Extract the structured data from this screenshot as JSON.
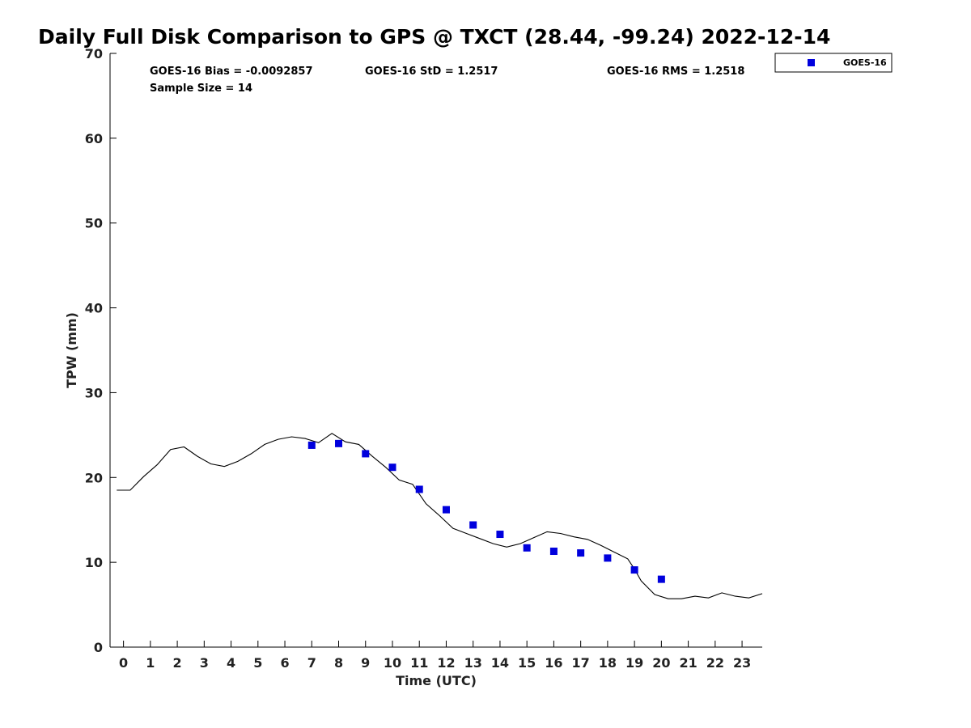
{
  "chart_data": {
    "type": "scatter",
    "title": "Daily Full Disk Comparison to GPS @ TXCT (28.44, -99.24) 2022-12-14",
    "xlabel": "Time (UTC)",
    "ylabel": "TPW (mm)",
    "xlim": [
      -0.5,
      23.75
    ],
    "ylim": [
      0,
      70
    ],
    "xticks": [
      0,
      1,
      2,
      3,
      4,
      5,
      6,
      7,
      8,
      9,
      10,
      11,
      12,
      13,
      14,
      15,
      16,
      17,
      18,
      19,
      20,
      21,
      22,
      23
    ],
    "yticks": [
      0,
      10,
      20,
      30,
      40,
      50,
      60,
      70
    ],
    "grid": false,
    "legend_position": "top-right (outside plot)",
    "stats": {
      "bias": "GOES-16 Bias = -0.0092857",
      "std": "GOES-16 StD = 1.2517",
      "rms": "GOES-16 RMS = 1.2518",
      "sample": "Sample Size = 14"
    },
    "series": [
      {
        "name": "GOES-16",
        "marker": "square",
        "color": "#0000dd",
        "x": [
          7,
          8,
          9,
          10,
          11,
          12,
          13,
          14,
          15,
          16,
          17,
          18,
          19,
          20
        ],
        "y": [
          23.8,
          24.0,
          22.8,
          21.2,
          18.6,
          16.2,
          14.4,
          13.3,
          11.7,
          11.3,
          11.1,
          10.5,
          9.1,
          8.0
        ]
      },
      {
        "marker": "line",
        "color": "#000000",
        "x": [
          -0.25,
          0.25,
          0.75,
          1.25,
          1.75,
          2.25,
          2.75,
          3.25,
          3.75,
          4.25,
          4.75,
          5.25,
          5.75,
          6.25,
          6.75,
          7.25,
          7.75,
          8.25,
          8.75,
          9.25,
          9.75,
          10.25,
          10.75,
          11.25,
          11.75,
          12.25,
          12.75,
          13.25,
          13.75,
          14.25,
          14.75,
          15.25,
          15.75,
          16.25,
          16.75,
          17.25,
          17.75,
          18.25,
          18.75,
          19.0,
          19.25,
          19.75,
          20.25,
          20.75,
          21.25,
          21.75,
          22.25,
          22.75,
          23.25,
          23.75
        ],
        "y": [
          18.5,
          18.5,
          20.1,
          21.5,
          23.3,
          23.6,
          22.5,
          21.6,
          21.3,
          21.9,
          22.8,
          23.9,
          24.5,
          24.8,
          24.6,
          24.1,
          25.2,
          24.2,
          23.9,
          22.5,
          21.2,
          19.7,
          19.2,
          16.9,
          15.5,
          14.0,
          13.4,
          12.8,
          12.2,
          11.8,
          12.2,
          12.9,
          13.6,
          13.4,
          13.0,
          12.7,
          12.0,
          11.2,
          10.4,
          9.2,
          7.8,
          6.2,
          5.7,
          5.7,
          6.0,
          5.8,
          6.4,
          6.0,
          5.8,
          6.3
        ]
      }
    ]
  }
}
